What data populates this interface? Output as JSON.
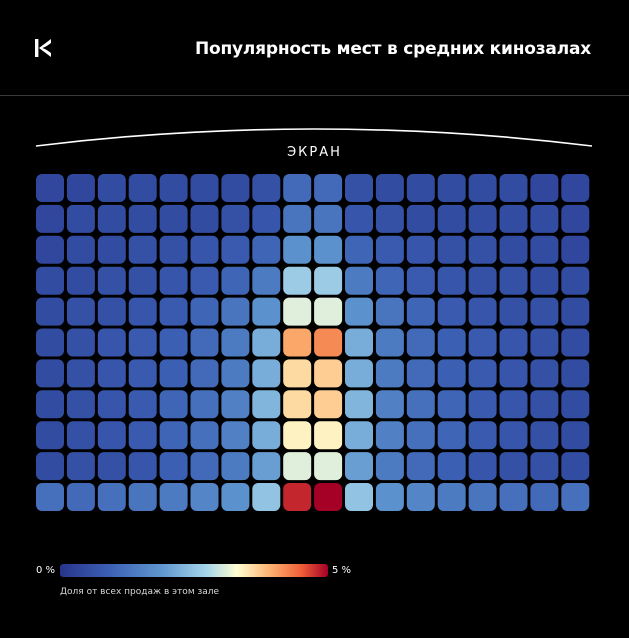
{
  "header": {
    "title": "Популярность мест в средних кинозалах",
    "logo_icon": "kinopoisk-k-logo-icon"
  },
  "screen": {
    "label": "ЭКРАН"
  },
  "legend": {
    "min_label": "0 %",
    "max_label": "5 %",
    "caption": "Доля от всех продаж в этом зале",
    "colors": [
      "#27348b",
      "#3b5fb3",
      "#5f97cf",
      "#a8d6ea",
      "#fffed2",
      "#fdb573",
      "#ef5f38",
      "#a50026"
    ]
  },
  "chart_data": {
    "type": "heatmap",
    "title": "Популярность мест в средних кинозалах",
    "rows": 11,
    "cols": 18,
    "value_range": [
      0,
      5
    ],
    "unit": "%",
    "values": [
      [
        0.4,
        0.4,
        0.5,
        0.5,
        0.5,
        0.5,
        0.5,
        0.6,
        1.1,
        1.1,
        0.6,
        0.5,
        0.5,
        0.5,
        0.5,
        0.5,
        0.4,
        0.4
      ],
      [
        0.4,
        0.5,
        0.5,
        0.5,
        0.5,
        0.5,
        0.6,
        0.7,
        1.3,
        1.3,
        0.7,
        0.6,
        0.5,
        0.5,
        0.5,
        0.5,
        0.5,
        0.4
      ],
      [
        0.4,
        0.5,
        0.5,
        0.6,
        0.6,
        0.7,
        0.8,
        1.0,
        1.8,
        1.8,
        1.0,
        0.8,
        0.7,
        0.6,
        0.6,
        0.5,
        0.5,
        0.4
      ],
      [
        0.5,
        0.5,
        0.6,
        0.6,
        0.7,
        0.8,
        1.0,
        1.4,
        2.6,
        2.6,
        1.4,
        1.0,
        0.8,
        0.7,
        0.6,
        0.6,
        0.5,
        0.5
      ],
      [
        0.5,
        0.6,
        0.6,
        0.7,
        0.8,
        1.0,
        1.3,
        1.8,
        3.1,
        3.1,
        1.8,
        1.3,
        1.0,
        0.8,
        0.7,
        0.6,
        0.6,
        0.5
      ],
      [
        0.5,
        0.6,
        0.7,
        0.8,
        0.9,
        1.1,
        1.4,
        2.2,
        4.0,
        4.2,
        2.2,
        1.4,
        1.1,
        0.9,
        0.8,
        0.7,
        0.6,
        0.5
      ],
      [
        0.5,
        0.6,
        0.7,
        0.8,
        0.9,
        1.1,
        1.4,
        2.2,
        3.6,
        3.7,
        2.2,
        1.4,
        1.1,
        0.9,
        0.8,
        0.7,
        0.6,
        0.5
      ],
      [
        0.5,
        0.6,
        0.7,
        0.8,
        1.0,
        1.2,
        1.5,
        2.3,
        3.6,
        3.7,
        2.3,
        1.5,
        1.2,
        1.0,
        0.8,
        0.7,
        0.6,
        0.5
      ],
      [
        0.5,
        0.6,
        0.7,
        0.8,
        1.0,
        1.2,
        1.5,
        2.2,
        3.4,
        3.4,
        2.2,
        1.5,
        1.2,
        1.0,
        0.8,
        0.7,
        0.6,
        0.5
      ],
      [
        0.5,
        0.6,
        0.6,
        0.7,
        0.9,
        1.1,
        1.4,
        2.0,
        3.1,
        3.1,
        2.0,
        1.4,
        1.1,
        0.9,
        0.7,
        0.6,
        0.6,
        0.5
      ],
      [
        1.2,
        1.1,
        1.2,
        1.3,
        1.4,
        1.6,
        1.8,
        2.5,
        4.8,
        5.0,
        2.5,
        1.8,
        1.6,
        1.4,
        1.3,
        1.2,
        1.1,
        1.2
      ]
    ]
  }
}
